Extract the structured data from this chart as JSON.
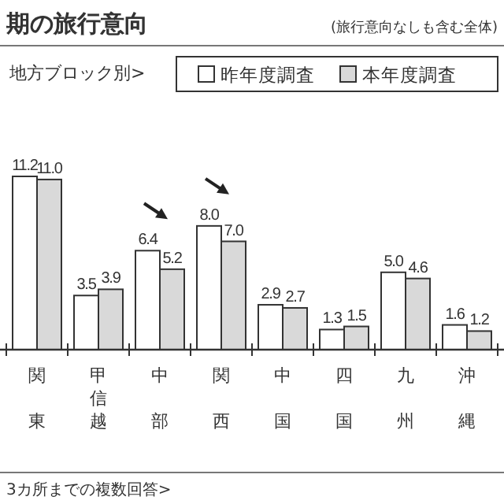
{
  "chart_data": {
    "type": "bar",
    "title": "期の旅行意向",
    "annotations": [
      "(旅行意向なしも含む全体)",
      "地方ブロック別>",
      "3カ所までの複数回答>"
    ],
    "categories": [
      "関東",
      "甲信越",
      "中部",
      "関西",
      "中国",
      "四国",
      "九州",
      "沖縄"
    ],
    "series": [
      {
        "name": "昨年度調査",
        "color": "#ffffff",
        "values": [
          11.2,
          3.5,
          6.4,
          8.0,
          2.9,
          1.3,
          5.0,
          1.6
        ],
        "value_labels": [
          "11.2",
          "3.5",
          "6.4",
          "8.0",
          "2.9",
          "1.3",
          "5.0",
          "1.6"
        ]
      },
      {
        "name": "本年度調査",
        "color": "#d9d9d9",
        "values": [
          11.0,
          3.9,
          5.2,
          7.0,
          2.7,
          1.5,
          4.6,
          1.2
        ],
        "value_labels": [
          "11.0",
          "3.9",
          "5.2",
          "7.0",
          "2.7",
          "1.5",
          "4.6",
          "1.2"
        ]
      }
    ],
    "legend": "top"
  }
}
